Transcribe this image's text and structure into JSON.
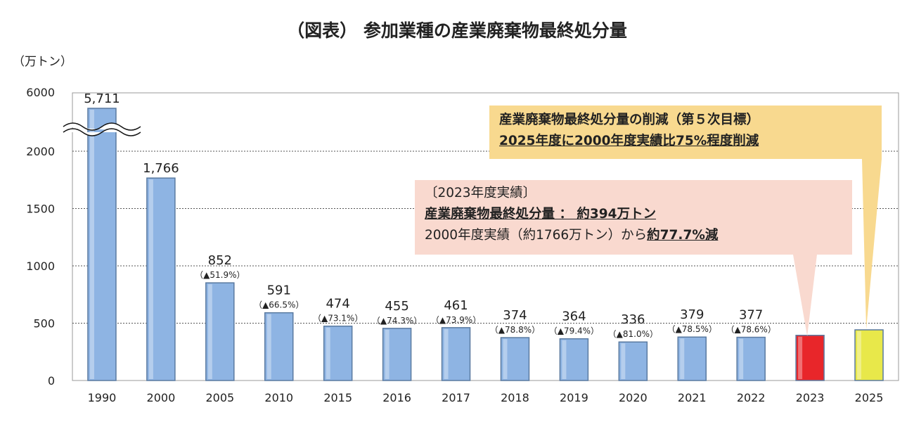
{
  "chart_data": {
    "type": "bar",
    "title": "（図表） 参加業種の産業廃棄物最終処分量",
    "ylabel": "（万トン）",
    "categories": [
      "1990",
      "2000",
      "2005",
      "2010",
      "2015",
      "2016",
      "2017",
      "2018",
      "2019",
      "2020",
      "2021",
      "2022",
      "2023",
      "2025"
    ],
    "values": [
      5711,
      1766,
      852,
      591,
      474,
      455,
      461,
      374,
      364,
      336,
      379,
      377,
      394,
      442
    ],
    "value_labels": [
      "5,711",
      "1,766",
      "852",
      "591",
      "474",
      "455",
      "461",
      "374",
      "364",
      "336",
      "379",
      "377",
      "",
      ""
    ],
    "reduction_labels": [
      "",
      "",
      "（▲51.9%）",
      "（▲66.5%）",
      "（▲73.1%）",
      "（▲74.3%）",
      "（▲73.9%）",
      "（▲78.8%）",
      "（▲79.4%）",
      "（▲81.0%）",
      "（▲78.5%）",
      "（▲78.6%）",
      "",
      ""
    ],
    "yticks": [
      "0",
      "500",
      "1000",
      "1500",
      "2000",
      "6000"
    ],
    "ylim": [
      0,
      2500
    ],
    "axis_break": true,
    "grid": true,
    "colors": {
      "bar": "#8eb4e3",
      "bar_2023": "#e8262a",
      "bar_2025": "#e8e84a",
      "target_box": "#f8d98f",
      "result_box": "#f9d9cf"
    }
  },
  "callouts": {
    "target": {
      "line1": "産業廃棄物最終処分量の削減（第５次目標）",
      "line2": "2025年度に2000年度実績比75%程度削減"
    },
    "result": {
      "line1": "〔2023年度実績〕",
      "line2": "産業廃棄物最終処分量 ： 約394万トン",
      "line3_prefix": "2000年度実績（約1766万トン）から",
      "line3_bold": "約77.7%減"
    }
  }
}
